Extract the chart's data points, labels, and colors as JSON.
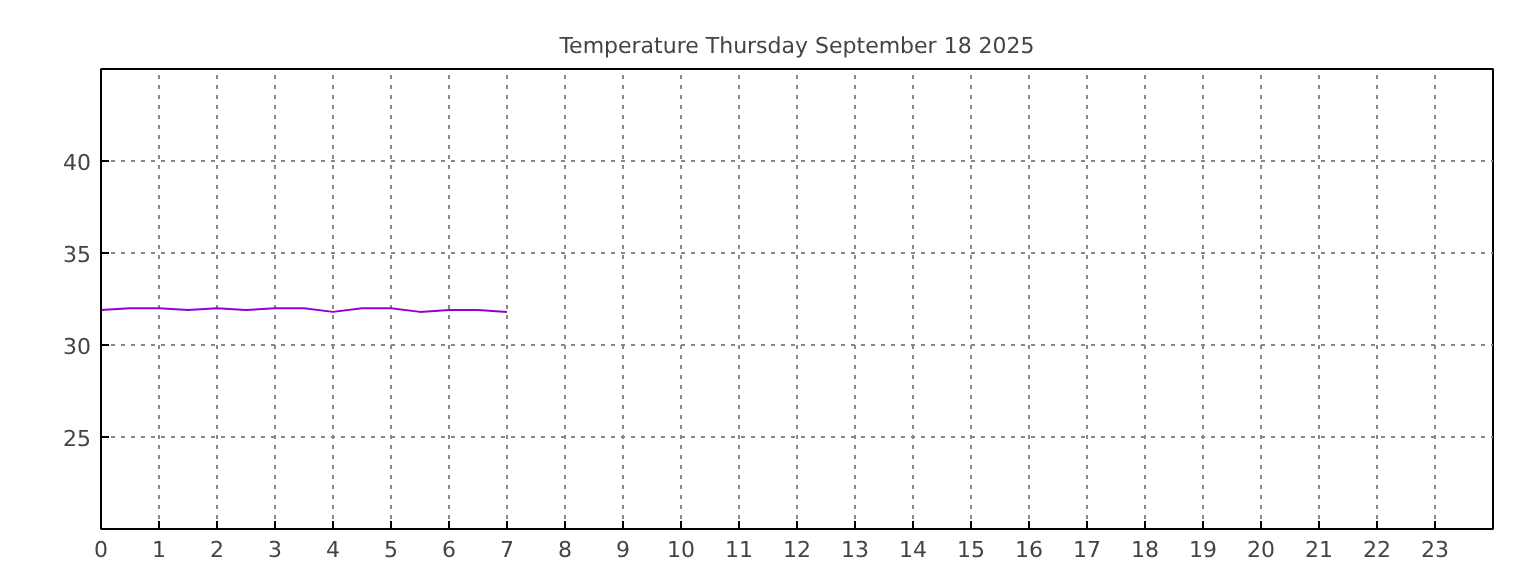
{
  "chart_data": {
    "type": "line",
    "title": "Temperature Thursday September 18 2025",
    "x": [
      0,
      0.5,
      1,
      1.5,
      2,
      2.5,
      3,
      3.5,
      4,
      4.5,
      5,
      5.5,
      6,
      6.5,
      7
    ],
    "series": [
      {
        "color": "#9400d3",
        "values": [
          31.9,
          32.0,
          32.0,
          31.9,
          32.0,
          31.9,
          32.0,
          32.0,
          31.8,
          32.0,
          32.0,
          31.8,
          31.9,
          31.9,
          31.8
        ]
      }
    ],
    "xlim": [
      0,
      24
    ],
    "xticks": [
      0,
      1,
      2,
      3,
      4,
      5,
      6,
      7,
      8,
      9,
      10,
      11,
      12,
      13,
      14,
      15,
      16,
      17,
      18,
      19,
      20,
      21,
      22,
      23
    ],
    "ylim": [
      20,
      45
    ],
    "yticks": [
      25,
      30,
      35,
      40
    ],
    "grid": true,
    "line_style": "solid",
    "marker": "none"
  }
}
